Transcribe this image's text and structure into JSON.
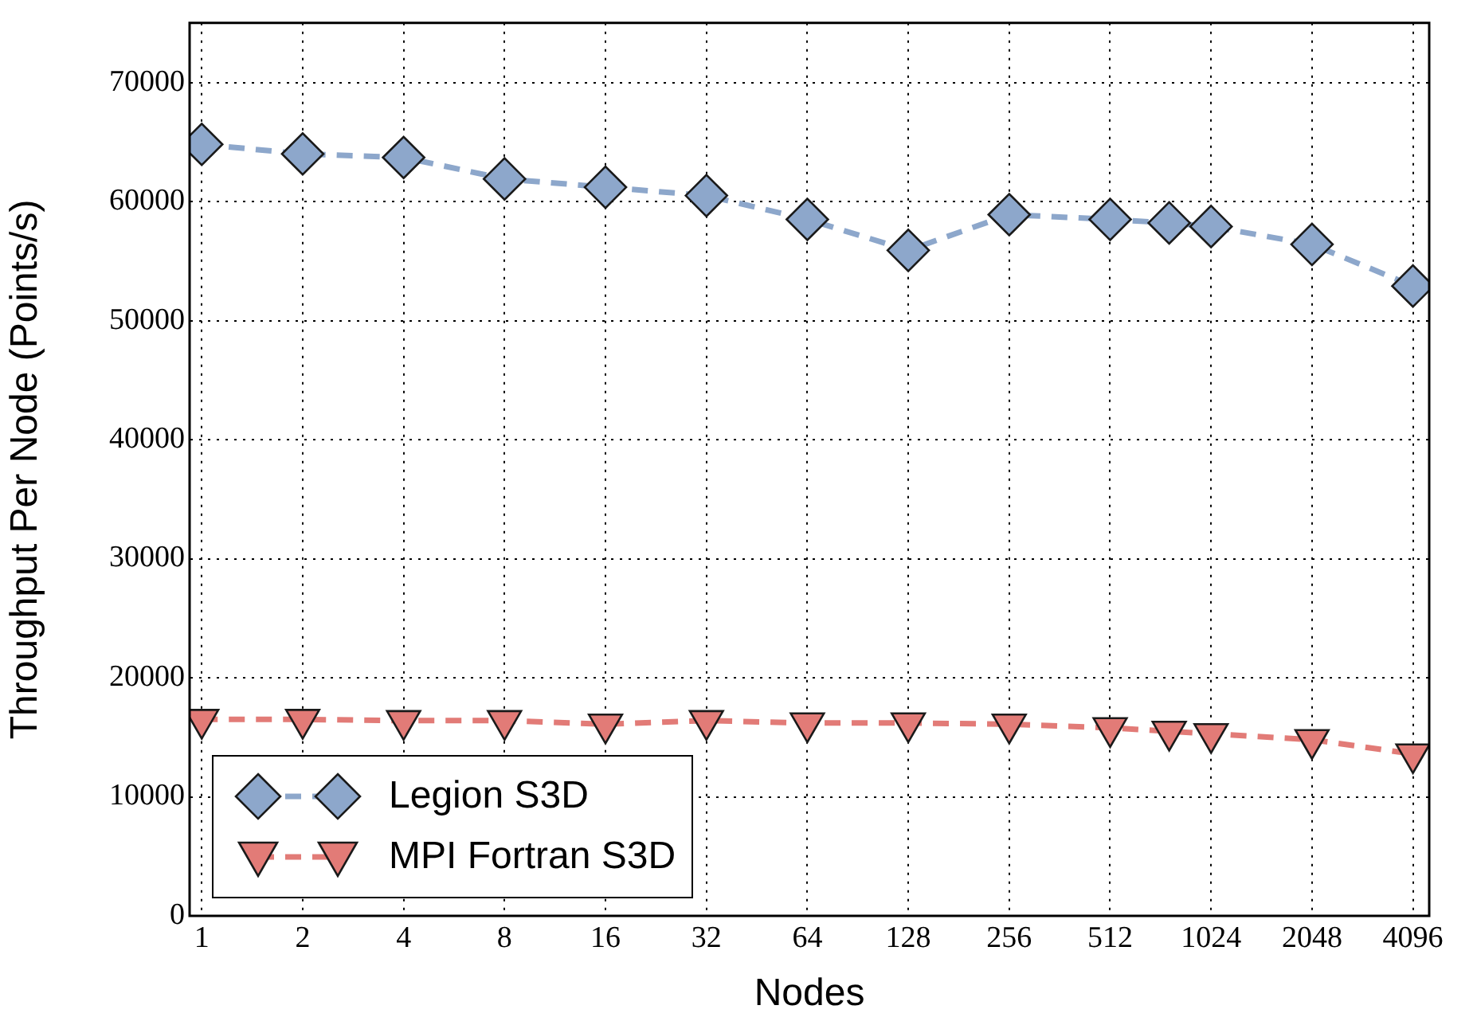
{
  "chart_data": {
    "type": "line",
    "xlabel": "Nodes",
    "ylabel": "Throughput Per Node (Points/s)",
    "x": [
      1,
      2,
      4,
      8,
      16,
      32,
      64,
      128,
      256,
      512,
      768,
      1024,
      2048,
      4096
    ],
    "log": "x",
    "xlim": [
      0.92,
      4580
    ],
    "xticks": [
      1,
      2,
      4,
      8,
      16,
      32,
      64,
      128,
      256,
      512,
      1024,
      2048,
      4096
    ],
    "ylim": [
      0,
      75000
    ],
    "yticks": [
      0,
      10000,
      20000,
      30000,
      40000,
      50000,
      60000,
      70000
    ],
    "grid": true,
    "legend": "bottom left",
    "line_style": "dashed",
    "series": [
      {
        "name": "Legion S3D",
        "color": "#8da7cb",
        "marker": "diamond",
        "values": [
          64800,
          64000,
          63700,
          61900,
          61200,
          60500,
          58500,
          55900,
          58900,
          58500,
          58200,
          57900,
          56400,
          52900
        ]
      },
      {
        "name": "MPI Fortran S3D",
        "color": "#e27b77",
        "marker": "triangle",
        "values": [
          16500,
          16500,
          16400,
          16400,
          16100,
          16400,
          16200,
          16200,
          16100,
          15800,
          15500,
          15300,
          14800,
          13600
        ]
      }
    ]
  }
}
